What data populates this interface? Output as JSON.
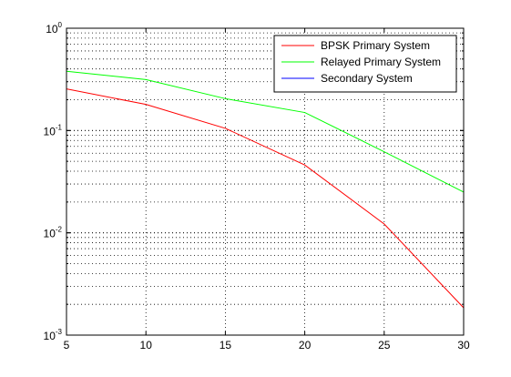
{
  "chart_data": {
    "type": "line",
    "title": "",
    "xlabel": "",
    "ylabel": "",
    "x_scale": "linear",
    "y_scale": "log",
    "xlim": [
      5,
      30
    ],
    "ylim": [
      0.001,
      1
    ],
    "x_ticks": [
      5,
      10,
      15,
      20,
      25,
      30
    ],
    "x_tick_labels": [
      "5",
      "10",
      "15",
      "20",
      "25",
      "30"
    ],
    "y_ticks": [
      {
        "value": 0.001,
        "base": "10",
        "exp": "-3"
      },
      {
        "value": 0.01,
        "base": "10",
        "exp": "-2"
      },
      {
        "value": 0.1,
        "base": "10",
        "exp": "-1"
      },
      {
        "value": 1,
        "base": "10",
        "exp": "0"
      }
    ],
    "grid": true,
    "legend_position": "top-right",
    "series": [
      {
        "name": "BPSK Primary System",
        "color": "#ff0000",
        "x": [
          5,
          10,
          15,
          20,
          25,
          30
        ],
        "y": [
          0.255,
          0.18,
          0.105,
          0.046,
          0.0122,
          0.00185
        ]
      },
      {
        "name": "Relayed Primary System",
        "color": "#00ff00",
        "x": [
          5,
          10,
          15,
          20,
          25,
          30
        ],
        "y": [
          0.38,
          0.315,
          0.205,
          0.15,
          0.062,
          0.025
        ]
      },
      {
        "name": "Secondary System",
        "color": "#0000ff",
        "x": [],
        "y": []
      }
    ]
  }
}
